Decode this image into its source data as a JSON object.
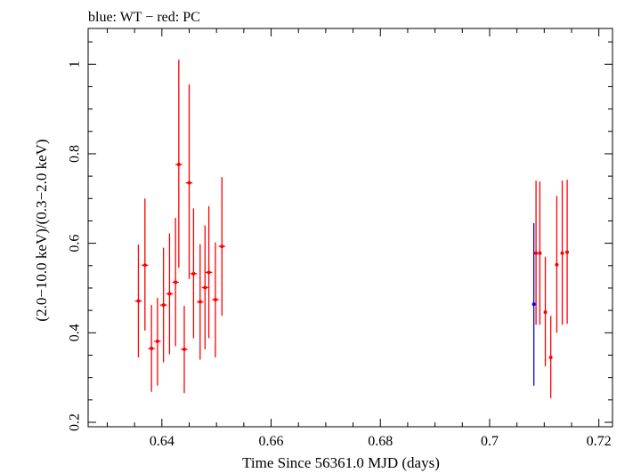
{
  "chart_data": {
    "type": "scatter",
    "title": "blue: WT − red: PC",
    "xlabel": "Time Since 56361.0 MJD (days)",
    "ylabel": "(2.0−10.0 keV)/(0.3−2.0 keV)",
    "xlim": [
      0.6265,
      0.7225
    ],
    "ylim": [
      0.19,
      1.08
    ],
    "x_ticks": [
      0.64,
      0.66,
      0.68,
      0.7,
      0.72
    ],
    "x_tick_labels": [
      "0.64",
      "0.66",
      "0.68",
      "0.7",
      "0.72"
    ],
    "y_ticks": [
      0.2,
      0.4,
      0.6,
      0.8,
      1.0
    ],
    "y_tick_labels": [
      "0.2",
      "0.4",
      "0.6",
      "0.8",
      "1"
    ],
    "grid": false,
    "series": [
      {
        "name": "PC",
        "color": "#ff0000",
        "points": [
          {
            "x": 0.6357,
            "y": 0.471,
            "xerr": 0.0006,
            "ylo": 0.345,
            "yhi": 0.597
          },
          {
            "x": 0.6369,
            "y": 0.551,
            "xerr": 0.0006,
            "ylo": 0.405,
            "yhi": 0.7
          },
          {
            "x": 0.6381,
            "y": 0.365,
            "xerr": 0.0006,
            "ylo": 0.268,
            "yhi": 0.462
          },
          {
            "x": 0.6392,
            "y": 0.381,
            "xerr": 0.0006,
            "ylo": 0.282,
            "yhi": 0.478
          },
          {
            "x": 0.6403,
            "y": 0.462,
            "xerr": 0.0006,
            "ylo": 0.334,
            "yhi": 0.59
          },
          {
            "x": 0.6414,
            "y": 0.487,
            "xerr": 0.0006,
            "ylo": 0.352,
            "yhi": 0.622
          },
          {
            "x": 0.6425,
            "y": 0.513,
            "xerr": 0.0006,
            "ylo": 0.37,
            "yhi": 0.657
          },
          {
            "x": 0.6431,
            "y": 0.776,
            "xerr": 0.0006,
            "ylo": 0.545,
            "yhi": 1.01
          },
          {
            "x": 0.6441,
            "y": 0.363,
            "xerr": 0.0006,
            "ylo": 0.265,
            "yhi": 0.46
          },
          {
            "x": 0.645,
            "y": 0.735,
            "xerr": 0.0006,
            "ylo": 0.52,
            "yhi": 0.955
          },
          {
            "x": 0.6458,
            "y": 0.532,
            "xerr": 0.0006,
            "ylo": 0.388,
            "yhi": 0.678
          },
          {
            "x": 0.647,
            "y": 0.469,
            "xerr": 0.0006,
            "ylo": 0.34,
            "yhi": 0.598
          },
          {
            "x": 0.6479,
            "y": 0.501,
            "xerr": 0.0006,
            "ylo": 0.363,
            "yhi": 0.64
          },
          {
            "x": 0.6486,
            "y": 0.535,
            "xerr": 0.0006,
            "ylo": 0.388,
            "yhi": 0.683
          },
          {
            "x": 0.6498,
            "y": 0.474,
            "xerr": 0.0006,
            "ylo": 0.345,
            "yhi": 0.602
          },
          {
            "x": 0.651,
            "y": 0.593,
            "xerr": 0.0006,
            "ylo": 0.438,
            "yhi": 0.748
          },
          {
            "x": 0.7085,
            "y": 0.578,
            "xerr": 0.0003,
            "ylo": 0.418,
            "yhi": 0.74
          },
          {
            "x": 0.7092,
            "y": 0.578,
            "xerr": 0.0003,
            "ylo": 0.418,
            "yhi": 0.738
          },
          {
            "x": 0.7102,
            "y": 0.446,
            "xerr": 0.0003,
            "ylo": 0.325,
            "yhi": 0.57
          },
          {
            "x": 0.7112,
            "y": 0.345,
            "xerr": 0.0003,
            "ylo": 0.254,
            "yhi": 0.438
          },
          {
            "x": 0.7123,
            "y": 0.552,
            "xerr": 0.0003,
            "ylo": 0.4,
            "yhi": 0.706
          },
          {
            "x": 0.7133,
            "y": 0.578,
            "xerr": 0.0003,
            "ylo": 0.418,
            "yhi": 0.74
          },
          {
            "x": 0.7142,
            "y": 0.58,
            "xerr": 0.0003,
            "ylo": 0.42,
            "yhi": 0.742
          }
        ]
      },
      {
        "name": "WT",
        "color": "#0000ff",
        "points": [
          {
            "x": 0.7081,
            "y": 0.464,
            "xerr": 0.0001,
            "ylo": 0.282,
            "yhi": 0.645
          }
        ]
      }
    ]
  }
}
